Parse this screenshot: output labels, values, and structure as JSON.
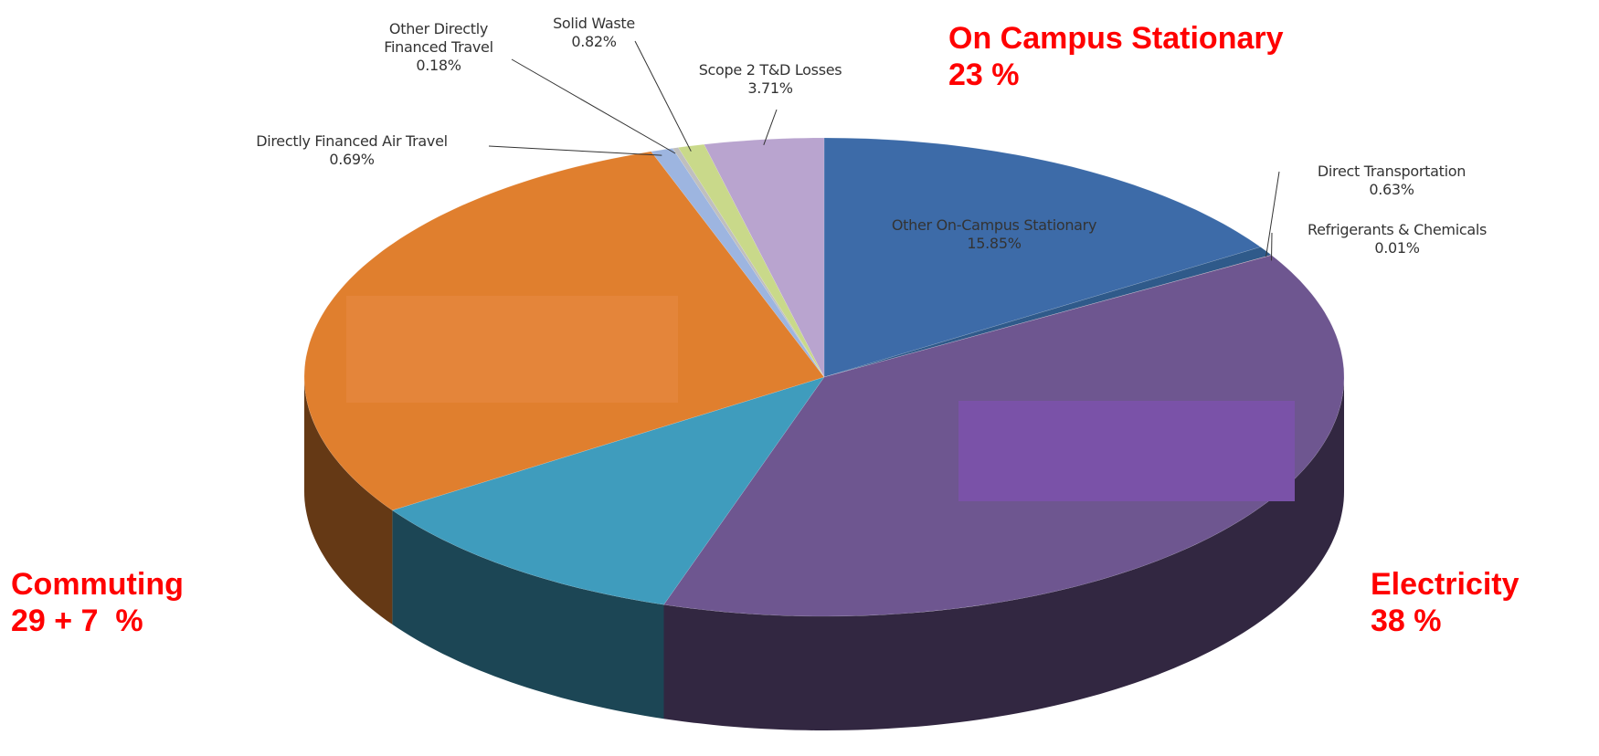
{
  "chart_data": {
    "type": "pie",
    "categories": [
      "Other On-Campus Stationary",
      "Direct Transportation",
      "Refrigerants & Chemicals",
      null,
      null,
      null,
      "Directly Financed Air Travel",
      "Other Directly\nFinanced Travel",
      "Solid Waste",
      "Scope 2 T&D Losses"
    ],
    "values": [
      15.85,
      0.63,
      0.01,
      38.5,
      10.61,
      29,
      0.69,
      0.18,
      0.82,
      3.71
    ],
    "value_labels": [
      "15.85%",
      "0.63%",
      "0.01%",
      null,
      null,
      null,
      "0.69%",
      "0.18%",
      "0.82%",
      "3.71%"
    ],
    "colors": [
      "#3d6ba8",
      "#2f5a8a",
      "#c0504d",
      "#6e5690",
      "#3f9cbd",
      "#e07f2e",
      "#9db5e0",
      "#bfbfbf",
      "#c9d98a",
      "#b9a4cf"
    ],
    "annotations": [
      {
        "lines": [
          "On Campus Stationary",
          "23 %"
        ]
      },
      {
        "lines": [
          "Commuting",
          "29 + 7  %"
        ]
      },
      {
        "lines": [
          "Electricity",
          "38 %"
        ]
      }
    ]
  }
}
